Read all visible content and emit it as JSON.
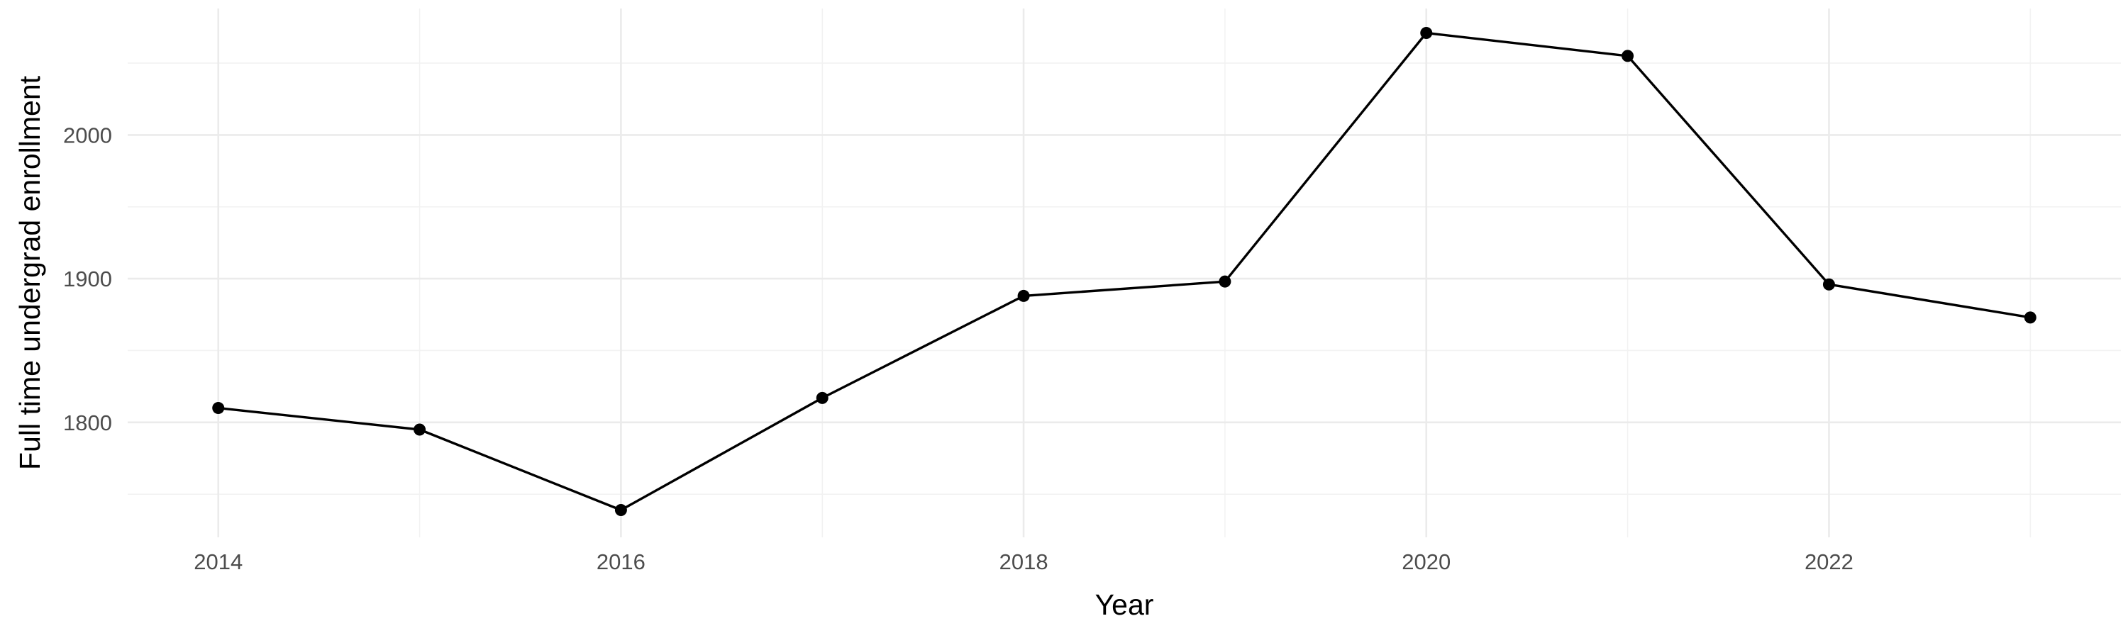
{
  "chart_data": {
    "type": "line",
    "title": "",
    "xlabel": "Year",
    "ylabel": "Full time undergrad enrollment",
    "x": [
      2014,
      2015,
      2016,
      2017,
      2018,
      2019,
      2020,
      2021,
      2022,
      2023
    ],
    "series": [
      {
        "values": [
          1810,
          1795,
          1739,
          1817,
          1888,
          1898,
          2071,
          2055,
          1896,
          1873
        ]
      }
    ],
    "xlim": [
      2013.55,
      2023.45
    ],
    "ylim": [
      1720,
      2088
    ],
    "x_major_ticks": [
      2014,
      2016,
      2018,
      2020,
      2022
    ],
    "x_minor_ticks": [
      2015,
      2017,
      2019,
      2021,
      2023
    ],
    "y_major_ticks": [
      1800,
      1900,
      2000
    ],
    "y_minor_ticks": [
      1750,
      1850,
      1950,
      2050
    ],
    "grid": true,
    "legend": "none",
    "colors": {
      "line": "#000000",
      "point": "#000000",
      "grid_major": "#ebebeb",
      "grid_minor": "#f2f2f2",
      "tick_text": "#4d4d4d"
    }
  }
}
